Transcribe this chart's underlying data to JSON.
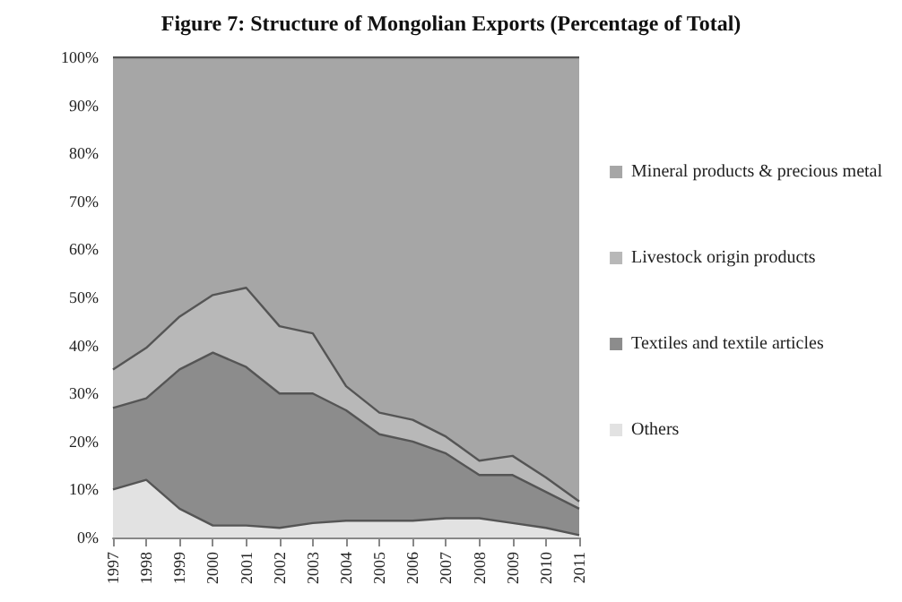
{
  "chart_data": {
    "type": "area",
    "stacked": true,
    "title": "Figure 7: Structure of Mongolian Exports (Percentage of Total)",
    "categories": [
      "1997",
      "1998",
      "1999",
      "2000",
      "2001",
      "2002",
      "2003",
      "2004",
      "2005",
      "2006",
      "2007",
      "2008",
      "2009",
      "2010",
      "2011"
    ],
    "series": [
      {
        "name": "Others",
        "color": "#e2e2e2",
        "values": [
          10,
          12,
          6,
          2.5,
          2.5,
          2,
          3,
          3.5,
          3.5,
          3.5,
          4,
          4,
          3,
          2,
          0.5
        ]
      },
      {
        "name": "Textiles and textile articles",
        "color": "#8c8c8c",
        "values": [
          17,
          17,
          29,
          36,
          33,
          28,
          27,
          23,
          18,
          16.5,
          13.5,
          9,
          10,
          7.5,
          5.5
        ]
      },
      {
        "name": "Livestock origin products",
        "color": "#b8b8b8",
        "values": [
          8,
          10.5,
          11,
          12,
          16.5,
          14,
          12.5,
          5,
          4.5,
          4.5,
          3.5,
          3,
          4,
          3,
          1.5
        ]
      },
      {
        "name": "Mineral products & precious metal",
        "color": "#a6a6a6",
        "values": [
          65,
          60.5,
          54,
          49.5,
          48,
          56,
          57.5,
          68.5,
          74,
          75.5,
          79,
          84,
          83,
          87.5,
          92.5
        ]
      }
    ],
    "ylim": [
      0,
      100
    ],
    "yticks": [
      {
        "value": 0,
        "label": "0%"
      },
      {
        "value": 10,
        "label": "10%"
      },
      {
        "value": 20,
        "label": "20%"
      },
      {
        "value": 30,
        "label": "30%"
      },
      {
        "value": 40,
        "label": "40%"
      },
      {
        "value": 50,
        "label": "50%"
      },
      {
        "value": 60,
        "label": "60%"
      },
      {
        "value": 70,
        "label": "70%"
      },
      {
        "value": 80,
        "label": "80%"
      },
      {
        "value": 90,
        "label": "90%"
      },
      {
        "value": 100,
        "label": "100%"
      }
    ],
    "grid": false,
    "legend": "right"
  }
}
